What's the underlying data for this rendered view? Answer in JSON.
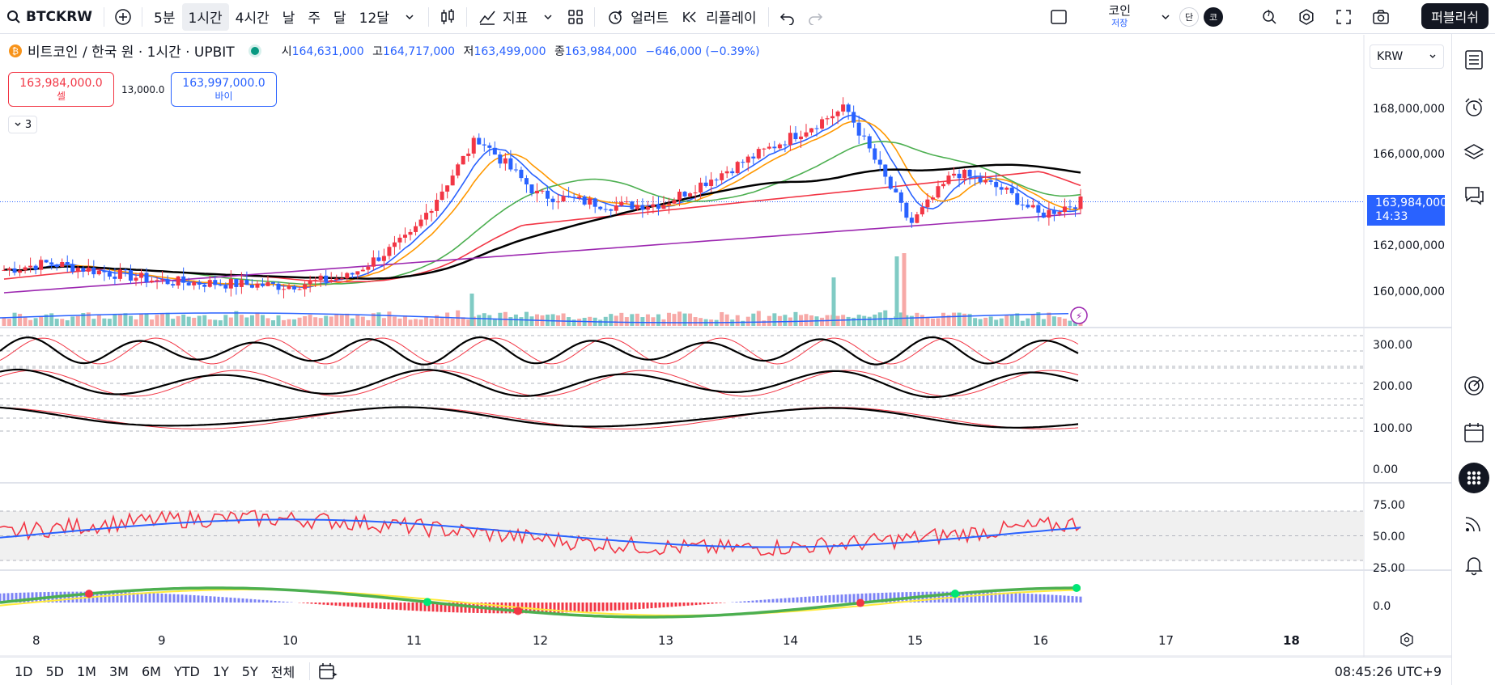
{
  "topbar": {
    "symbol": "BTCKRW",
    "intervals": [
      "5분",
      "1시간",
      "4시간",
      "날",
      "주",
      "달",
      "12달"
    ],
    "active_interval": "1시간",
    "indicators_label": "지표",
    "alert_label": "얼러트",
    "replay_label": "리플레이",
    "save_label": "코인",
    "save_sub": "저장",
    "badge_a": "단",
    "badge_b": "코",
    "publish_label": "퍼블리쉬"
  },
  "legend": {
    "title": "비트코인 / 한국 원 · 1시간 · UPBIT",
    "o_label": "시",
    "o": "164,631,000",
    "h_label": "고",
    "h": "164,717,000",
    "l_label": "저",
    "l": "163,499,000",
    "c_label": "종",
    "c": "163,984,000",
    "change": "−646,000 (−0.39%)"
  },
  "trade": {
    "sell_price": "163,984,000.0",
    "sell_label": "셀",
    "spread": "13,000.0",
    "buy_price": "163,997,000.0",
    "buy_label": "바이",
    "collapsed_count": "3"
  },
  "currency": "KRW",
  "price_axis": {
    "labels": [
      "168,000,000",
      "166,000,000",
      "162,000,000",
      "160,000,000"
    ],
    "current_price": "163,984,000",
    "countdown": "14:33"
  },
  "osc1_axis": [
    "300.00",
    "200.00",
    "100.00",
    "0.00"
  ],
  "rsi_axis": [
    "75.00",
    "50.00",
    "25.00"
  ],
  "osc3_axis": [
    "0.0"
  ],
  "time_axis": [
    "8",
    "9",
    "10",
    "11",
    "12",
    "13",
    "14",
    "15",
    "16",
    "17",
    "18"
  ],
  "ranges": [
    "1D",
    "5D",
    "1M",
    "3M",
    "6M",
    "YTD",
    "1Y",
    "5Y",
    "전체"
  ],
  "clock": "08:45:26 UTC+9",
  "colors": {
    "accent": "#2962ff",
    "up": "#f23645",
    "down": "#2962ff",
    "vol_up": "#f7a9a7",
    "vol_down": "#80cbc4"
  },
  "chart_data": {
    "type": "line",
    "title": "비트코인 / 한국 원 · 1시간 · UPBIT",
    "x": [
      "8",
      "9",
      "10",
      "11",
      "12",
      "13",
      "14",
      "15",
      "16"
    ],
    "series": [
      {
        "values": [
          161000000,
          160500000,
          160400000,
          162500000,
          165500000,
          163600000,
          166500000,
          163500000,
          163984000
        ]
      }
    ],
    "ylim": [
      158500000,
      169500000
    ]
  }
}
